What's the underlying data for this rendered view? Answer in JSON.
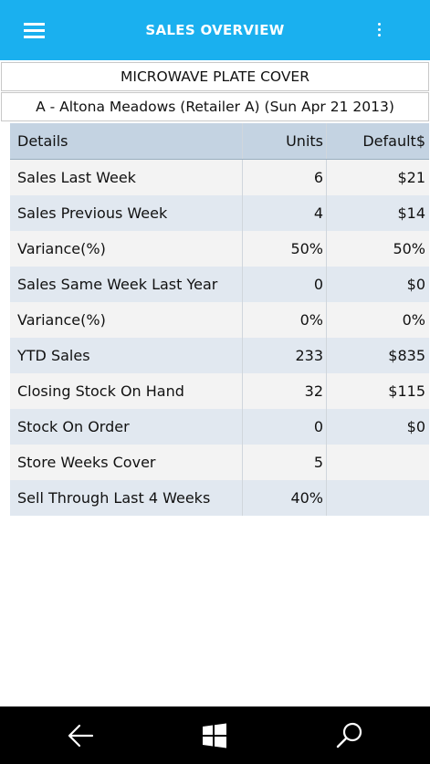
{
  "appbar": {
    "title": "SALES OVERVIEW",
    "menu_icon": "hamburger-menu-icon",
    "more_icon": "more-vertical-icon",
    "color": "#1ab0ef"
  },
  "product_name": "MICROWAVE PLATE COVER",
  "store_line": "A - Altona Meadows (Retailer A) (Sun Apr 21 2013)",
  "table": {
    "headers": [
      "Details",
      "Units",
      "Default$"
    ],
    "rows": [
      {
        "label": "Sales Last Week",
        "units": "6",
        "dollars": "$21"
      },
      {
        "label": "Sales Previous Week",
        "units": "4",
        "dollars": "$14"
      },
      {
        "label": "Variance(%)",
        "units": "50%",
        "dollars": "50%"
      },
      {
        "label": "Sales Same Week Last Year",
        "units": "0",
        "dollars": "$0"
      },
      {
        "label": "Variance(%)",
        "units": "0%",
        "dollars": "0%"
      },
      {
        "label": "YTD Sales",
        "units": "233",
        "dollars": "$835"
      },
      {
        "label": "Closing Stock On Hand",
        "units": "32",
        "dollars": "$115"
      },
      {
        "label": "Stock On Order",
        "units": "0",
        "dollars": "$0"
      },
      {
        "label": "Store Weeks Cover",
        "units": "5",
        "dollars": ""
      },
      {
        "label": "Sell Through Last 4 Weeks",
        "units": "40%",
        "dollars": ""
      }
    ]
  },
  "navbar": {
    "back_icon": "back-arrow-icon",
    "home_icon": "windows-logo-icon",
    "search_icon": "search-icon"
  }
}
